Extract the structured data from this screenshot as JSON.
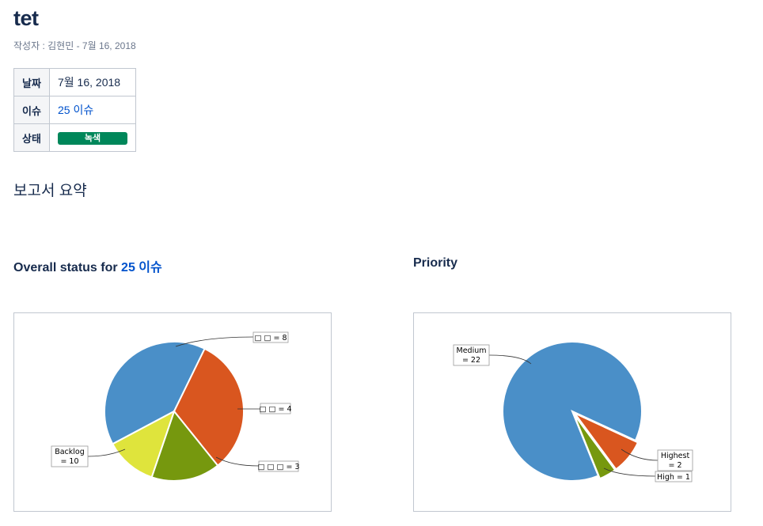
{
  "page": {
    "title": "tet",
    "byline": "작성자 : 김현민 - 7월 16, 2018"
  },
  "meta": {
    "rows": [
      {
        "label": "날짜",
        "value": "7월 16, 2018"
      },
      {
        "label": "이슈",
        "value": "25 이슈"
      },
      {
        "label": "상태",
        "value": "녹색"
      }
    ],
    "status_color": "#00875a"
  },
  "summary_heading": "보고서 요약",
  "charts": {
    "overall": {
      "title_prefix": "Overall status for ",
      "title_link": "25 이슈"
    },
    "priority": {
      "title": "Priority"
    }
  },
  "chart_data": [
    {
      "type": "pie",
      "slices": [
        {
          "label": "Backlog",
          "value": 10,
          "color": "#4a8fc8",
          "label_text": [
            "Backlog",
            "= 10"
          ]
        },
        {
          "label": "□ □",
          "value": 8,
          "color": "#d9561f",
          "label_text": [
            "□ □ = 8"
          ]
        },
        {
          "label": "□ □",
          "value": 4,
          "color": "#76980e",
          "label_text": [
            "□ □ = 4"
          ]
        },
        {
          "label": "□ □ □",
          "value": 3,
          "color": "#dfe43c",
          "label_text": [
            "□ □ □ = 3"
          ]
        }
      ]
    },
    {
      "type": "pie",
      "slices": [
        {
          "label": "Medium",
          "value": 22,
          "color": "#4a8fc8",
          "label_text": [
            "Medium",
            "= 22"
          ]
        },
        {
          "label": "Highest",
          "value": 2,
          "color": "#d9561f",
          "label_text": [
            "Highest",
            "= 2"
          ]
        },
        {
          "label": "High",
          "value": 1,
          "color": "#76980e",
          "label_text": [
            "High = 1"
          ]
        }
      ]
    }
  ]
}
